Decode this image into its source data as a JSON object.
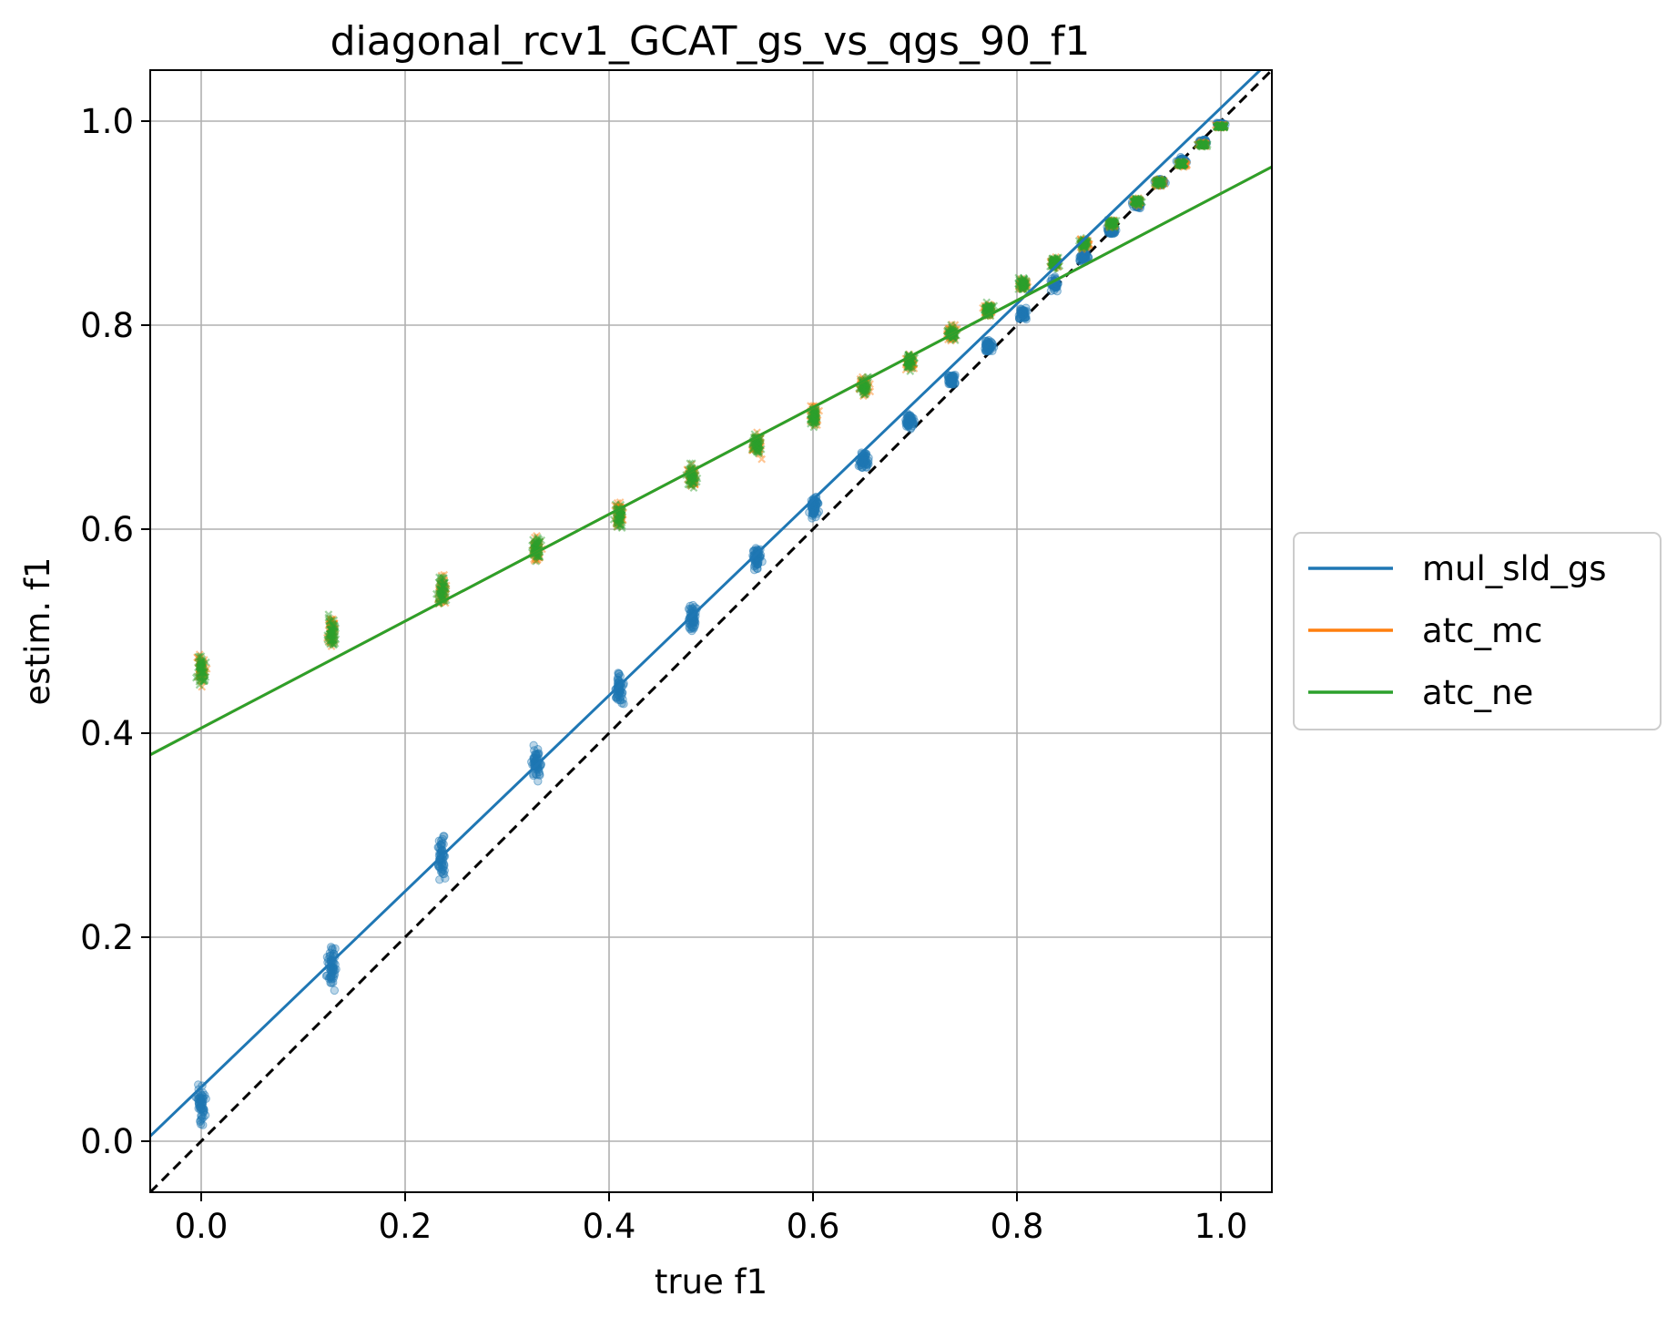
{
  "chart_data": {
    "type": "scatter",
    "title": "diagonal_rcv1_GCAT_gs_vs_qgs_90_f1",
    "xlabel": "true f1",
    "ylabel": "estim. f1",
    "xlim": [
      -0.05,
      1.05
    ],
    "ylim": [
      -0.05,
      1.05
    ],
    "xticks": [
      "0.0",
      "0.2",
      "0.4",
      "0.6",
      "0.8",
      "1.0"
    ],
    "yticks": [
      "0.0",
      "0.2",
      "0.4",
      "0.6",
      "0.8",
      "1.0"
    ],
    "grid": true,
    "legend_position": "outside-right",
    "diagonal": {
      "style": "dashed",
      "color": "#000000",
      "from": [
        -0.05,
        -0.05
      ],
      "to": [
        1.05,
        1.05
      ]
    },
    "series": [
      {
        "name": "mul_sld_gs",
        "color": "#1f77b4",
        "marker": "circle",
        "fit_line": {
          "slope": 0.96,
          "intercept": 0.053
        },
        "clusters": [
          {
            "x": 0.0,
            "y_mean": 0.035,
            "y_spread": 0.028
          },
          {
            "x": 0.128,
            "y_mean": 0.172,
            "y_spread": 0.03
          },
          {
            "x": 0.236,
            "y_mean": 0.277,
            "y_spread": 0.028
          },
          {
            "x": 0.329,
            "y_mean": 0.37,
            "y_spread": 0.022
          },
          {
            "x": 0.41,
            "y_mean": 0.443,
            "y_spread": 0.022
          },
          {
            "x": 0.481,
            "y_mean": 0.512,
            "y_spread": 0.02
          },
          {
            "x": 0.545,
            "y_mean": 0.571,
            "y_spread": 0.018
          },
          {
            "x": 0.601,
            "y_mean": 0.622,
            "y_spread": 0.015
          },
          {
            "x": 0.65,
            "y_mean": 0.668,
            "y_spread": 0.014
          },
          {
            "x": 0.695,
            "y_mean": 0.706,
            "y_spread": 0.013
          },
          {
            "x": 0.736,
            "y_mean": 0.746,
            "y_spread": 0.01
          },
          {
            "x": 0.772,
            "y_mean": 0.779,
            "y_spread": 0.01
          },
          {
            "x": 0.806,
            "y_mean": 0.812,
            "y_spread": 0.009
          },
          {
            "x": 0.837,
            "y_mean": 0.84,
            "y_spread": 0.008
          },
          {
            "x": 0.866,
            "y_mean": 0.867,
            "y_spread": 0.007
          },
          {
            "x": 0.893,
            "y_mean": 0.893,
            "y_spread": 0.006
          },
          {
            "x": 0.918,
            "y_mean": 0.918,
            "y_spread": 0.005
          },
          {
            "x": 0.94,
            "y_mean": 0.94,
            "y_spread": 0.005
          },
          {
            "x": 0.962,
            "y_mean": 0.961,
            "y_spread": 0.004
          },
          {
            "x": 0.982,
            "y_mean": 0.98,
            "y_spread": 0.003
          },
          {
            "x": 1.0,
            "y_mean": 0.997,
            "y_spread": 0.002
          }
        ]
      },
      {
        "name": "atc_mc",
        "color": "#ff7f0e",
        "marker": "x",
        "fit_line": {
          "slope": 0.524,
          "intercept": 0.405
        },
        "clusters": [
          {
            "x": 0.0,
            "y_mean": 0.463,
            "y_spread": 0.022
          },
          {
            "x": 0.128,
            "y_mean": 0.5,
            "y_spread": 0.022
          },
          {
            "x": 0.236,
            "y_mean": 0.54,
            "y_spread": 0.022
          },
          {
            "x": 0.329,
            "y_mean": 0.58,
            "y_spread": 0.018
          },
          {
            "x": 0.41,
            "y_mean": 0.615,
            "y_spread": 0.018
          },
          {
            "x": 0.481,
            "y_mean": 0.652,
            "y_spread": 0.016
          },
          {
            "x": 0.545,
            "y_mean": 0.683,
            "y_spread": 0.015
          },
          {
            "x": 0.601,
            "y_mean": 0.711,
            "y_spread": 0.014
          },
          {
            "x": 0.65,
            "y_mean": 0.74,
            "y_spread": 0.013
          },
          {
            "x": 0.695,
            "y_mean": 0.764,
            "y_spread": 0.011
          },
          {
            "x": 0.736,
            "y_mean": 0.792,
            "y_spread": 0.01
          },
          {
            "x": 0.772,
            "y_mean": 0.815,
            "y_spread": 0.01
          },
          {
            "x": 0.806,
            "y_mean": 0.84,
            "y_spread": 0.009
          },
          {
            "x": 0.837,
            "y_mean": 0.861,
            "y_spread": 0.008
          },
          {
            "x": 0.866,
            "y_mean": 0.88,
            "y_spread": 0.007
          },
          {
            "x": 0.893,
            "y_mean": 0.9,
            "y_spread": 0.006
          },
          {
            "x": 0.918,
            "y_mean": 0.921,
            "y_spread": 0.005
          },
          {
            "x": 0.94,
            "y_mean": 0.94,
            "y_spread": 0.005
          },
          {
            "x": 0.962,
            "y_mean": 0.958,
            "y_spread": 0.004
          },
          {
            "x": 0.982,
            "y_mean": 0.977,
            "y_spread": 0.003
          },
          {
            "x": 1.0,
            "y_mean": 0.995,
            "y_spread": 0.002
          }
        ]
      },
      {
        "name": "atc_ne",
        "color": "#2ca02c",
        "marker": "x",
        "fit_line": {
          "slope": 0.524,
          "intercept": 0.405
        },
        "clusters": [
          {
            "x": 0.0,
            "y_mean": 0.463,
            "y_spread": 0.022
          },
          {
            "x": 0.128,
            "y_mean": 0.5,
            "y_spread": 0.022
          },
          {
            "x": 0.236,
            "y_mean": 0.54,
            "y_spread": 0.022
          },
          {
            "x": 0.329,
            "y_mean": 0.58,
            "y_spread": 0.018
          },
          {
            "x": 0.41,
            "y_mean": 0.615,
            "y_spread": 0.018
          },
          {
            "x": 0.481,
            "y_mean": 0.652,
            "y_spread": 0.016
          },
          {
            "x": 0.545,
            "y_mean": 0.683,
            "y_spread": 0.015
          },
          {
            "x": 0.601,
            "y_mean": 0.711,
            "y_spread": 0.014
          },
          {
            "x": 0.65,
            "y_mean": 0.74,
            "y_spread": 0.013
          },
          {
            "x": 0.695,
            "y_mean": 0.764,
            "y_spread": 0.011
          },
          {
            "x": 0.736,
            "y_mean": 0.792,
            "y_spread": 0.01
          },
          {
            "x": 0.772,
            "y_mean": 0.815,
            "y_spread": 0.01
          },
          {
            "x": 0.806,
            "y_mean": 0.84,
            "y_spread": 0.009
          },
          {
            "x": 0.837,
            "y_mean": 0.861,
            "y_spread": 0.008
          },
          {
            "x": 0.866,
            "y_mean": 0.88,
            "y_spread": 0.007
          },
          {
            "x": 0.893,
            "y_mean": 0.9,
            "y_spread": 0.006
          },
          {
            "x": 0.918,
            "y_mean": 0.921,
            "y_spread": 0.005
          },
          {
            "x": 0.94,
            "y_mean": 0.94,
            "y_spread": 0.005
          },
          {
            "x": 0.962,
            "y_mean": 0.958,
            "y_spread": 0.004
          },
          {
            "x": 0.982,
            "y_mean": 0.977,
            "y_spread": 0.003
          },
          {
            "x": 1.0,
            "y_mean": 0.995,
            "y_spread": 0.002
          }
        ]
      }
    ]
  }
}
